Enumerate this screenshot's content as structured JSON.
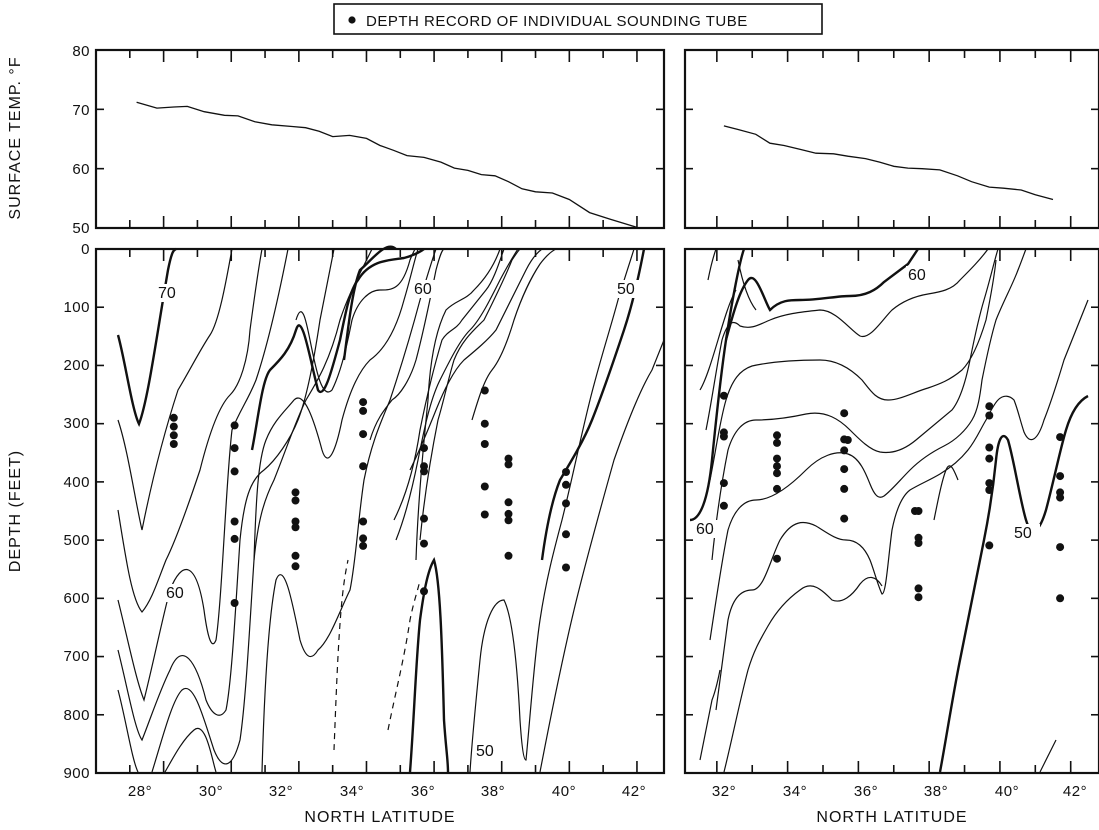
{
  "legend": {
    "label": "DEPTH RECORD OF INDIVIDUAL SOUNDING TUBE"
  },
  "axes": {
    "x_label": "NORTH LATITUDE",
    "surface_y_label": "SURFACE TEMP. °F",
    "depth_y_label": "DEPTH (FEET)",
    "surface_ticks": [
      "80",
      "70",
      "60",
      "50"
    ],
    "depth_ticks": [
      "0",
      "100",
      "200",
      "300",
      "400",
      "500",
      "600",
      "700",
      "800",
      "900"
    ],
    "left_x_ticks": [
      "28°",
      "30°",
      "32°",
      "34°",
      "36°",
      "38°",
      "40°",
      "42°"
    ],
    "right_x_ticks": [
      "32°",
      "34°",
      "36°",
      "38°",
      "40°",
      "42°"
    ]
  },
  "contour_labels": {
    "left": [
      "70",
      "60",
      "60",
      "50",
      "50"
    ],
    "right": [
      "60",
      "60",
      "50"
    ]
  },
  "chart_data": [
    {
      "type": "line",
      "panel": "surface-left",
      "xlabel": "NORTH LATITUDE",
      "ylabel": "SURFACE TEMP. °F",
      "xlim": [
        26,
        42.8
      ],
      "ylim": [
        50,
        80
      ],
      "series": [
        {
          "x": [
            27.2,
            27.8,
            28.3,
            28.7,
            29.2,
            29.8,
            30.2,
            30.7,
            31.2,
            31.8,
            32.2,
            32.6,
            33.0,
            33.5,
            34.0,
            34.4,
            34.8,
            35.2,
            35.7,
            36.2,
            36.6,
            37.0,
            37.4,
            37.8,
            38.2,
            38.6,
            39.0,
            39.5,
            40.0,
            40.6,
            41.2,
            42.0
          ],
          "y": [
            71.2,
            70.2,
            70.4,
            70.5,
            69.6,
            69.0,
            68.9,
            67.9,
            67.4,
            67.1,
            66.9,
            66.3,
            65.4,
            65.6,
            65.1,
            63.9,
            63.1,
            62.2,
            61.9,
            61.1,
            60.1,
            59.7,
            59.0,
            58.8,
            57.8,
            56.6,
            56.1,
            55.9,
            54.8,
            52.6,
            51.5,
            50.1
          ]
        }
      ]
    },
    {
      "type": "line",
      "panel": "surface-right",
      "xlabel": "NORTH LATITUDE",
      "ylabel": "",
      "xlim": [
        31.1,
        42.8
      ],
      "ylim": [
        50,
        80
      ],
      "series": [
        {
          "x": [
            32.2,
            32.6,
            33.1,
            33.5,
            33.9,
            34.4,
            34.8,
            35.3,
            35.7,
            36.2,
            36.6,
            37.0,
            37.4,
            37.8,
            38.3,
            38.8,
            39.2,
            39.7,
            40.1,
            40.6,
            41.0,
            41.5
          ],
          "y": [
            67.2,
            66.6,
            65.8,
            64.3,
            63.9,
            63.2,
            62.6,
            62.5,
            62.1,
            61.7,
            61.1,
            60.4,
            60.1,
            60.0,
            59.8,
            58.8,
            57.8,
            56.9,
            56.7,
            56.4,
            55.6,
            54.8
          ]
        }
      ]
    },
    {
      "type": "scatter",
      "panel": "depth-left",
      "xlabel": "NORTH LATITUDE",
      "ylabel": "DEPTH (FEET)",
      "xlim": [
        26,
        42.8
      ],
      "ylim": [
        900,
        0
      ],
      "points": [
        [
          28.3,
          290
        ],
        [
          28.3,
          305
        ],
        [
          28.3,
          320
        ],
        [
          28.3,
          335
        ],
        [
          30.1,
          303
        ],
        [
          30.1,
          342
        ],
        [
          30.1,
          382
        ],
        [
          30.1,
          468
        ],
        [
          30.1,
          498
        ],
        [
          30.1,
          608
        ],
        [
          31.9,
          418
        ],
        [
          31.9,
          432
        ],
        [
          31.9,
          468
        ],
        [
          31.9,
          478
        ],
        [
          31.9,
          527
        ],
        [
          31.9,
          545
        ],
        [
          33.9,
          263
        ],
        [
          33.9,
          278
        ],
        [
          33.9,
          318
        ],
        [
          33.9,
          373
        ],
        [
          33.9,
          468
        ],
        [
          33.9,
          497
        ],
        [
          33.9,
          510
        ],
        [
          35.7,
          342
        ],
        [
          35.7,
          373
        ],
        [
          35.7,
          382
        ],
        [
          35.7,
          463
        ],
        [
          35.7,
          506
        ],
        [
          35.7,
          588
        ],
        [
          37.5,
          243
        ],
        [
          37.5,
          300
        ],
        [
          37.5,
          335
        ],
        [
          37.5,
          408
        ],
        [
          37.5,
          456
        ],
        [
          38.2,
          360
        ],
        [
          38.2,
          370
        ],
        [
          38.2,
          435
        ],
        [
          38.2,
          455
        ],
        [
          38.2,
          466
        ],
        [
          38.2,
          527
        ],
        [
          39.9,
          383
        ],
        [
          39.9,
          405
        ],
        [
          39.9,
          437
        ],
        [
          39.9,
          490
        ],
        [
          39.9,
          547
        ]
      ]
    },
    {
      "type": "scatter",
      "panel": "depth-right",
      "xlabel": "NORTH LATITUDE",
      "ylabel": "",
      "xlim": [
        31.1,
        42.8
      ],
      "ylim": [
        900,
        0
      ],
      "points": [
        [
          32.2,
          252
        ],
        [
          32.2,
          315
        ],
        [
          32.2,
          322
        ],
        [
          32.2,
          402
        ],
        [
          32.2,
          441
        ],
        [
          33.7,
          320
        ],
        [
          33.7,
          333
        ],
        [
          33.7,
          360
        ],
        [
          33.7,
          373
        ],
        [
          33.7,
          385
        ],
        [
          33.7,
          412
        ],
        [
          33.7,
          532
        ],
        [
          35.6,
          282
        ],
        [
          35.6,
          327
        ],
        [
          35.7,
          328
        ],
        [
          35.6,
          346
        ],
        [
          35.6,
          378
        ],
        [
          35.6,
          412
        ],
        [
          35.6,
          463
        ],
        [
          37.6,
          450
        ],
        [
          37.7,
          450
        ],
        [
          37.7,
          496
        ],
        [
          37.7,
          505
        ],
        [
          37.7,
          583
        ],
        [
          37.7,
          598
        ],
        [
          39.7,
          270
        ],
        [
          39.7,
          286
        ],
        [
          39.7,
          341
        ],
        [
          39.7,
          360
        ],
        [
          39.7,
          402
        ],
        [
          39.7,
          414
        ],
        [
          39.7,
          509
        ],
        [
          41.7,
          323
        ],
        [
          41.7,
          390
        ],
        [
          41.7,
          418
        ],
        [
          41.7,
          427
        ],
        [
          41.7,
          512
        ],
        [
          41.7,
          600
        ]
      ]
    }
  ]
}
